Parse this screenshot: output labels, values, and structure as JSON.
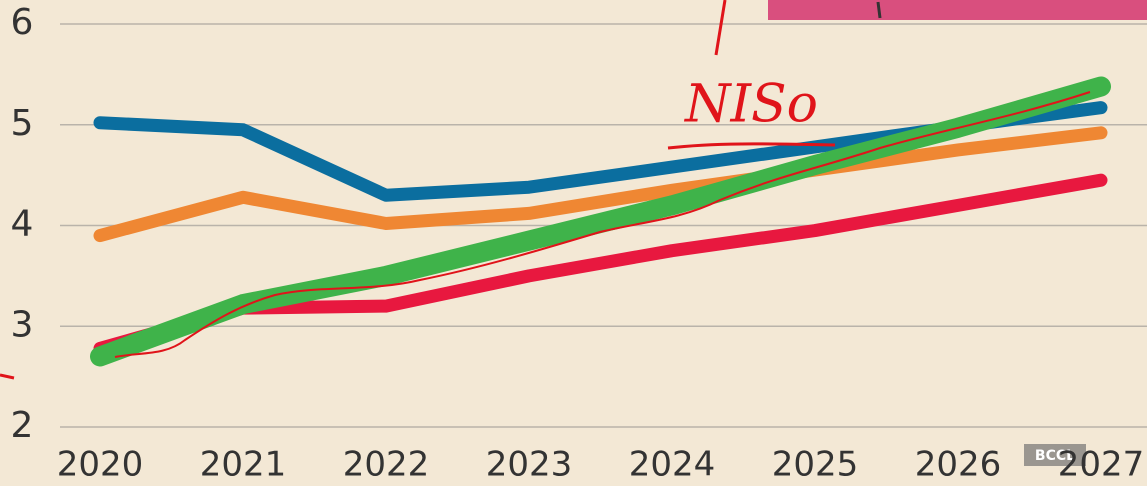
{
  "chart_data": {
    "type": "line",
    "x": [
      2020,
      2021,
      2022,
      2023,
      2024,
      2025,
      2026,
      2027
    ],
    "xlim": [
      2020,
      2027
    ],
    "xticks": [
      2020,
      2021,
      2022,
      2023,
      2024,
      2025,
      2026,
      2027
    ],
    "ylim": [
      2,
      6
    ],
    "yticks": [
      2,
      3,
      4,
      5,
      6
    ],
    "grid": true,
    "annotations": [
      "NISo",
      "BCCL"
    ],
    "series": [
      {
        "color": "#0b6e9f",
        "values": [
          5.02,
          4.95,
          4.3,
          4.38,
          4.58,
          4.78,
          4.98,
          5.17
        ]
      },
      {
        "color": "#ef8733",
        "values": [
          3.9,
          4.28,
          4.02,
          4.12,
          4.35,
          4.55,
          4.75,
          4.92
        ]
      },
      {
        "color": "#e8183f",
        "values": [
          2.78,
          3.18,
          3.2,
          3.5,
          3.75,
          3.95,
          4.2,
          4.45
        ]
      },
      {
        "color": "#3fb34a",
        "values": [
          2.7,
          3.22,
          3.5,
          3.85,
          4.2,
          4.6,
          4.97,
          5.38
        ]
      }
    ]
  }
}
